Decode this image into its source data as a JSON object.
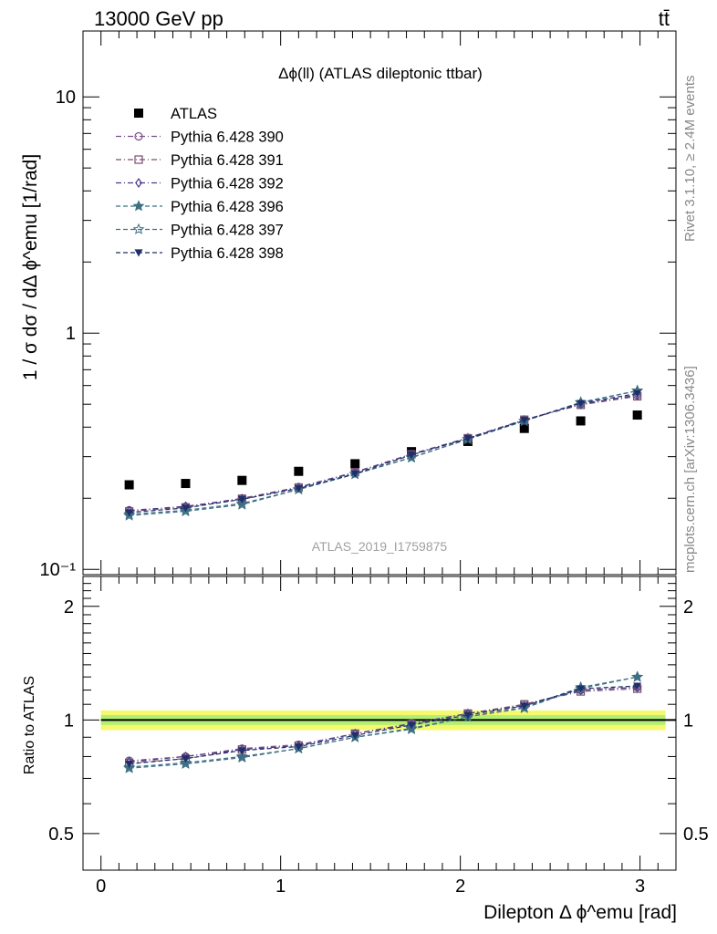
{
  "header": {
    "energy_label": "13000 GeV pp",
    "process_label": "tt̄"
  },
  "side_labels": {
    "rivet": "Rivet 3.1.10, ≥ 2.4M events",
    "source": "mcplots.cern.ch [arXiv:1306.3436]"
  },
  "chart_data": [
    {
      "type": "line",
      "panel": "main",
      "title": "Δϕ(ll) (ATLAS dileptonic ttbar)",
      "watermark": "ATLAS_2019_I1759875",
      "ylabel": "1 / σ  dσ / dΔ ϕ^emu [1/rad]",
      "yscale": "log",
      "xlim": [
        -0.1,
        3.2
      ],
      "ylim": [
        0.095,
        19
      ],
      "y_tick_labels": [
        "10⁻¹",
        "1",
        "10"
      ],
      "y_tick_values": [
        0.1,
        1,
        10
      ],
      "legend_position": "top-left",
      "x": [
        0.157,
        0.471,
        0.785,
        1.1,
        1.414,
        1.728,
        2.042,
        2.356,
        2.67,
        2.985
      ],
      "series": [
        {
          "name": "ATLAS",
          "marker": "filled-square",
          "color": "#000000",
          "line": "none",
          "values": [
            0.228,
            0.231,
            0.238,
            0.26,
            0.28,
            0.315,
            0.348,
            0.395,
            0.425,
            0.45
          ]
        },
        {
          "name": "Pythia 6.428 390",
          "marker": "open-circle",
          "color": "#7a4e8a",
          "line": "dash-dot",
          "values": [
            0.178,
            0.184,
            0.2,
            0.223,
            0.258,
            0.308,
            0.36,
            0.43,
            0.5,
            0.545
          ]
        },
        {
          "name": "Pythia 6.428 391",
          "marker": "open-square",
          "color": "#7a4e6e",
          "line": "dash-dot",
          "values": [
            0.176,
            0.183,
            0.199,
            0.222,
            0.258,
            0.307,
            0.359,
            0.43,
            0.497,
            0.54
          ]
        },
        {
          "name": "Pythia 6.428 392",
          "marker": "open-diamond",
          "color": "#4d3a8a",
          "line": "dash-dot",
          "values": [
            0.177,
            0.185,
            0.198,
            0.222,
            0.257,
            0.306,
            0.36,
            0.428,
            0.5,
            0.548
          ]
        },
        {
          "name": "Pythia 6.428 396",
          "marker": "filled-star",
          "color": "#3f6f85",
          "line": "dashed",
          "values": [
            0.171,
            0.178,
            0.19,
            0.218,
            0.253,
            0.298,
            0.355,
            0.425,
            0.51,
            0.57
          ]
        },
        {
          "name": "Pythia 6.428 397",
          "marker": "open-star",
          "color": "#3f6f85",
          "line": "dashed",
          "values": [
            0.169,
            0.176,
            0.188,
            0.218,
            0.253,
            0.297,
            0.356,
            0.424,
            0.507,
            0.57
          ]
        },
        {
          "name": "Pythia 6.428 398",
          "marker": "filled-triangle-down",
          "color": "#1f2f6a",
          "line": "dashed",
          "values": [
            0.174,
            0.182,
            0.198,
            0.22,
            0.254,
            0.305,
            0.358,
            0.428,
            0.505,
            0.555
          ]
        }
      ]
    },
    {
      "type": "line",
      "panel": "ratio",
      "ylabel": "Ratio to ATLAS",
      "xlabel": "Dilepton Δ ϕ^emu [rad]",
      "yscale": "log",
      "xlim": [
        -0.1,
        3.2
      ],
      "ylim": [
        0.4,
        2.4
      ],
      "x_tick_labels": [
        "0",
        "1",
        "2",
        "3"
      ],
      "x_tick_values": [
        0,
        1,
        2,
        3
      ],
      "y_tick_labels": [
        "0.5",
        "1",
        "2"
      ],
      "y_tick_values": [
        0.5,
        1,
        2
      ],
      "reference_band": {
        "center": 1.0,
        "inner": 0.03,
        "outer": 0.06
      },
      "x": [
        0.157,
        0.471,
        0.785,
        1.1,
        1.414,
        1.728,
        2.042,
        2.356,
        2.67,
        2.985
      ],
      "series": [
        {
          "name": "Pythia 6.428 390",
          "values": [
            0.78,
            0.8,
            0.84,
            0.86,
            0.92,
            0.98,
            1.04,
            1.1,
            1.2,
            1.22
          ]
        },
        {
          "name": "Pythia 6.428 391",
          "values": [
            0.77,
            0.79,
            0.835,
            0.855,
            0.92,
            0.975,
            1.04,
            1.1,
            1.19,
            1.21
          ]
        },
        {
          "name": "Pythia 6.428 392",
          "values": [
            0.775,
            0.8,
            0.835,
            0.855,
            0.92,
            0.975,
            1.04,
            1.09,
            1.2,
            1.22
          ]
        },
        {
          "name": "Pythia 6.428 396",
          "values": [
            0.75,
            0.77,
            0.8,
            0.84,
            0.9,
            0.95,
            1.02,
            1.08,
            1.22,
            1.3
          ]
        },
        {
          "name": "Pythia 6.428 397",
          "values": [
            0.745,
            0.765,
            0.795,
            0.84,
            0.9,
            0.945,
            1.02,
            1.075,
            1.21,
            1.3
          ]
        },
        {
          "name": "Pythia 6.428 398",
          "values": [
            0.765,
            0.79,
            0.83,
            0.85,
            0.91,
            0.97,
            1.03,
            1.09,
            1.21,
            1.23
          ]
        }
      ]
    }
  ]
}
